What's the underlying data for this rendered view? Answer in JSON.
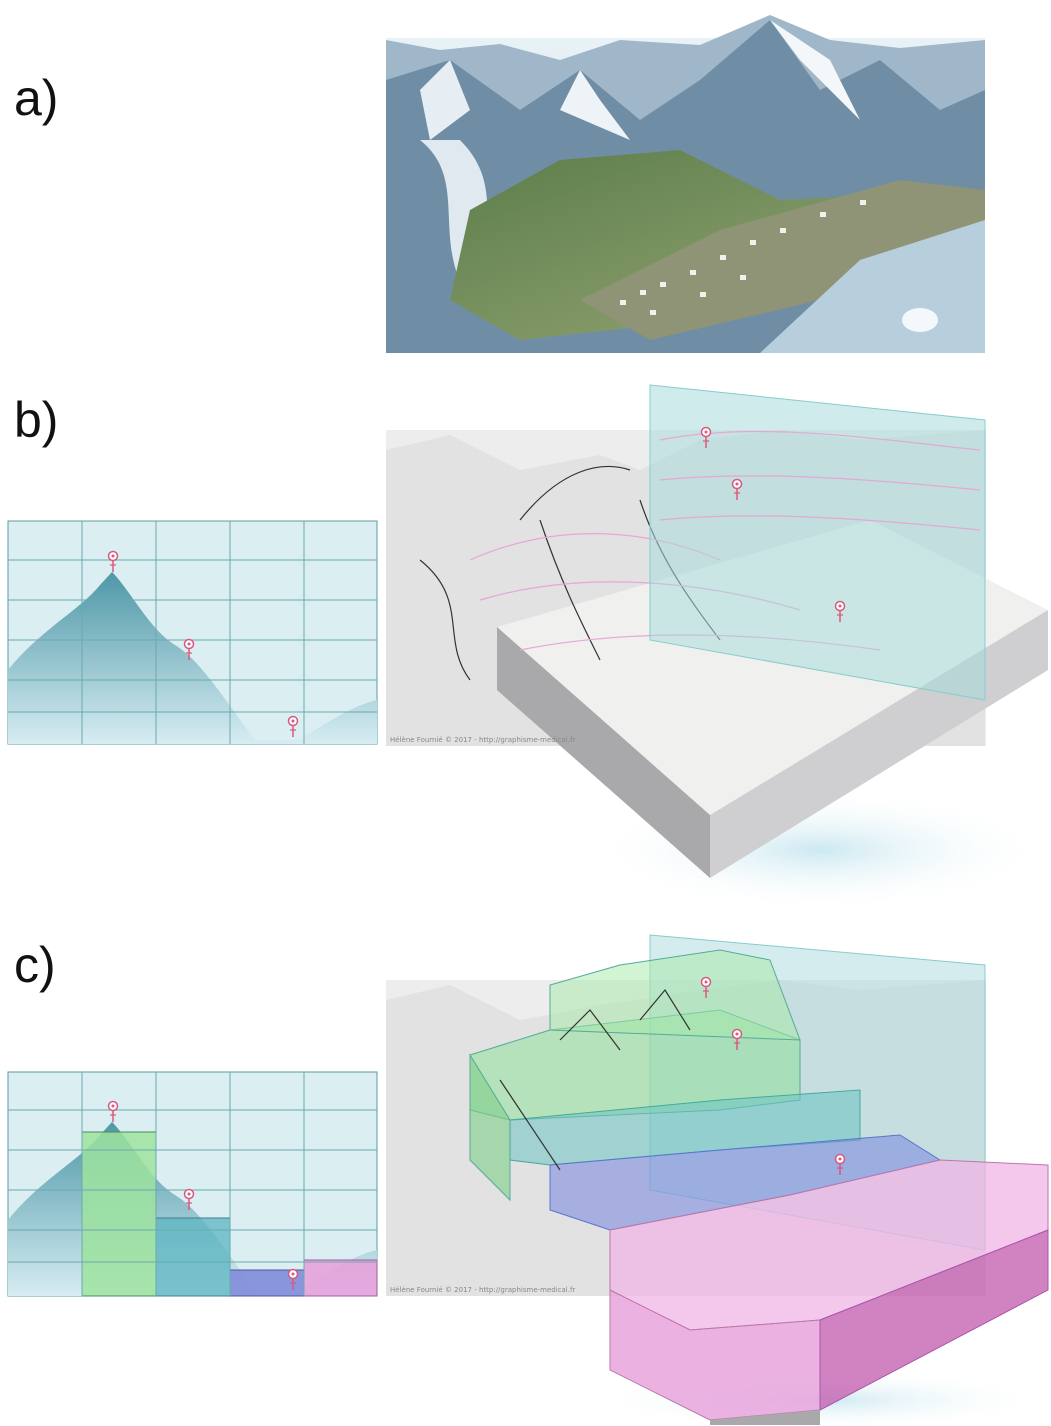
{
  "labels": {
    "a": "a)",
    "b": "b)",
    "c": "c)"
  },
  "credits": [
    "Hélène Fournié © 2017 - http://graphisme-medical.fr",
    "Hélène Fournié © 2017 - http://graphisme-medical.fr"
  ]
}
